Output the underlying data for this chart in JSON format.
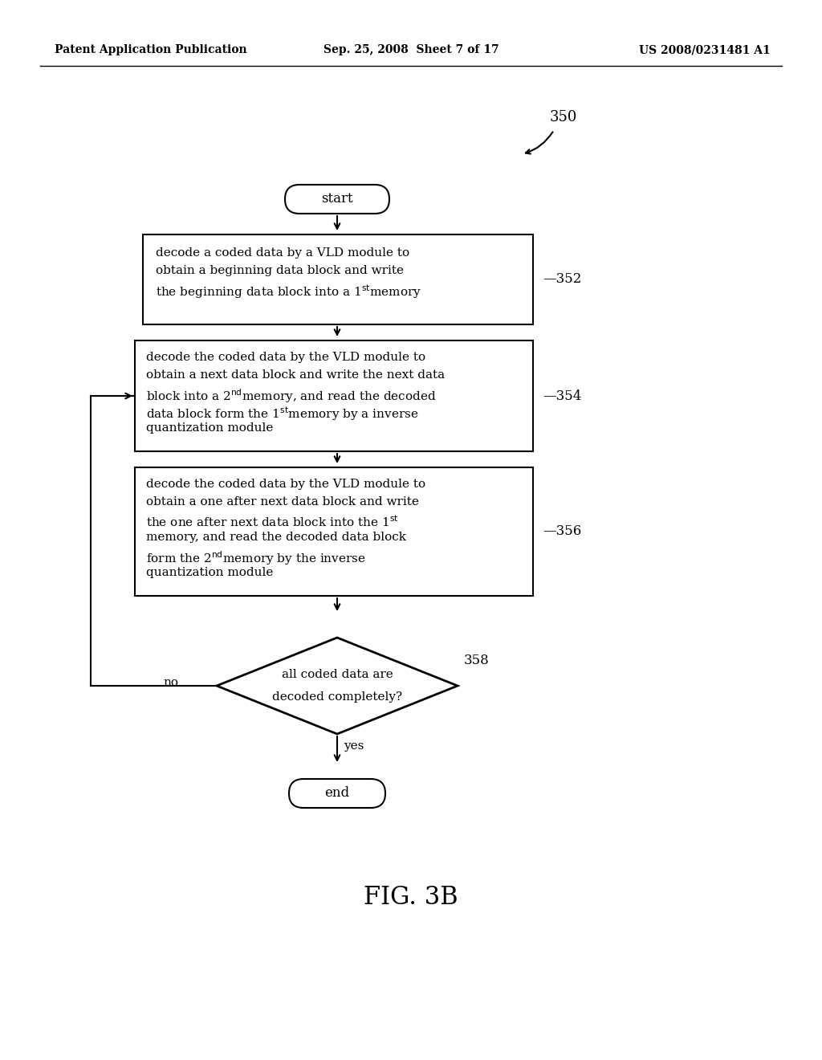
{
  "bg_color": "#ffffff",
  "header_left": "Patent Application Publication",
  "header_mid": "Sep. 25, 2008  Sheet 7 of 17",
  "header_right": "US 2008/0231481 A1",
  "fig_label": "FIG. 3B",
  "diagram_label": "350",
  "start_label": "start",
  "end_label": "end",
  "box1_label": "352",
  "box2_label": "354",
  "box3_label": "356",
  "diamond_text1": "all coded data are",
  "diamond_text2": "decoded completely?",
  "diamond_label": "358",
  "no_label": "no",
  "yes_label": "yes"
}
